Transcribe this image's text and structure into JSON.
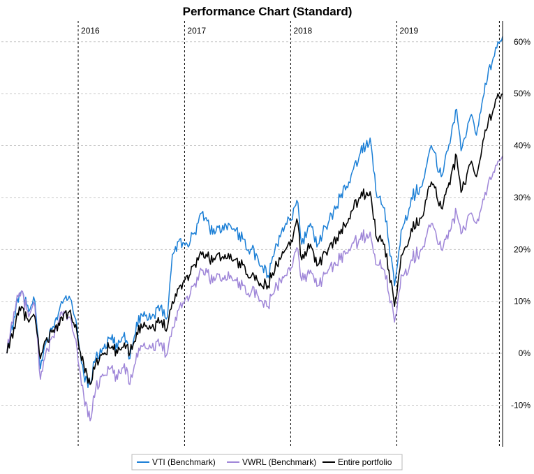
{
  "chart_data": {
    "type": "line",
    "title": "Performance Chart (Standard)",
    "xlabel": "",
    "ylabel": "",
    "x_range": [
      "2015-05-01",
      "2019-12-31"
    ],
    "year_markers": [
      {
        "label": "2016",
        "date": "2016-01-01"
      },
      {
        "label": "2017",
        "date": "2017-01-01"
      },
      {
        "label": "2018",
        "date": "2018-01-01"
      },
      {
        "label": "2019",
        "date": "2019-01-01"
      }
    ],
    "end_marker_dates": [
      "2019-12-20",
      "2019-12-31"
    ],
    "ylim": [
      -18,
      64
    ],
    "y_ticks": [
      {
        "value": -10,
        "label": "-10%"
      },
      {
        "value": 0,
        "label": "0%"
      },
      {
        "value": 10,
        "label": "10%"
      },
      {
        "value": 20,
        "label": "20%"
      },
      {
        "value": 30,
        "label": "30%"
      },
      {
        "value": 40,
        "label": "40%"
      },
      {
        "value": 50,
        "label": "50%"
      },
      {
        "value": 60,
        "label": "60%"
      }
    ],
    "grid": true,
    "legend_position": "bottom",
    "series": [
      {
        "name": "VTI (Benchmark)",
        "color": "#1b7fd6",
        "points": [
          [
            "2015-05-01",
            0
          ],
          [
            "2015-05-25",
            7
          ],
          [
            "2015-06-20",
            12
          ],
          [
            "2015-07-15",
            8
          ],
          [
            "2015-08-05",
            10
          ],
          [
            "2015-08-24",
            -3
          ],
          [
            "2015-09-15",
            3
          ],
          [
            "2015-10-10",
            5
          ],
          [
            "2015-11-05",
            10
          ],
          [
            "2015-12-01",
            11
          ],
          [
            "2015-12-20",
            7
          ],
          [
            "2016-01-20",
            -4
          ],
          [
            "2016-02-11",
            -6
          ],
          [
            "2016-03-01",
            -1
          ],
          [
            "2016-03-25",
            1
          ],
          [
            "2016-04-20",
            3
          ],
          [
            "2016-05-15",
            1
          ],
          [
            "2016-06-08",
            4
          ],
          [
            "2016-06-27",
            -1
          ],
          [
            "2016-07-20",
            6
          ],
          [
            "2016-08-15",
            8
          ],
          [
            "2016-09-10",
            7
          ],
          [
            "2016-10-10",
            9
          ],
          [
            "2016-11-03",
            7
          ],
          [
            "2016-11-20",
            19
          ],
          [
            "2016-12-15",
            22
          ],
          [
            "2017-01-10",
            21
          ],
          [
            "2017-02-01",
            23
          ],
          [
            "2017-03-01",
            27
          ],
          [
            "2017-04-15",
            23
          ],
          [
            "2017-05-20",
            25
          ],
          [
            "2017-06-20",
            24
          ],
          [
            "2017-07-20",
            22
          ],
          [
            "2017-08-20",
            20
          ],
          [
            "2017-09-15",
            17
          ],
          [
            "2017-10-15",
            15
          ],
          [
            "2017-11-15",
            21
          ],
          [
            "2017-12-15",
            25
          ],
          [
            "2018-01-26",
            29
          ],
          [
            "2018-02-08",
            21
          ],
          [
            "2018-03-10",
            25
          ],
          [
            "2018-04-05",
            21
          ],
          [
            "2018-05-10",
            25
          ],
          [
            "2018-06-20",
            30
          ],
          [
            "2018-07-20",
            33
          ],
          [
            "2018-08-25",
            38
          ],
          [
            "2018-09-20",
            41
          ],
          [
            "2018-10-05",
            40
          ],
          [
            "2018-10-25",
            30
          ],
          [
            "2018-11-20",
            28
          ],
          [
            "2018-12-24",
            13
          ],
          [
            "2019-01-20",
            24
          ],
          [
            "2019-02-20",
            30
          ],
          [
            "2019-03-25",
            32
          ],
          [
            "2019-04-30",
            40
          ],
          [
            "2019-06-03",
            34
          ],
          [
            "2019-07-26",
            47
          ],
          [
            "2019-08-10",
            39
          ],
          [
            "2019-09-15",
            46
          ],
          [
            "2019-10-02",
            42
          ],
          [
            "2019-11-01",
            52
          ],
          [
            "2019-11-25",
            56
          ],
          [
            "2019-12-15",
            60
          ],
          [
            "2019-12-31",
            61
          ]
        ]
      },
      {
        "name": "VWRL (Benchmark)",
        "color": "#9f86d8",
        "points": [
          [
            "2015-05-01",
            0
          ],
          [
            "2015-05-25",
            8
          ],
          [
            "2015-06-20",
            12
          ],
          [
            "2015-07-15",
            7
          ],
          [
            "2015-08-05",
            9
          ],
          [
            "2015-08-24",
            -5
          ],
          [
            "2015-09-15",
            1
          ],
          [
            "2015-10-10",
            3
          ],
          [
            "2015-11-05",
            8
          ],
          [
            "2015-12-01",
            7
          ],
          [
            "2015-12-20",
            3
          ],
          [
            "2016-01-20",
            -8
          ],
          [
            "2016-02-11",
            -13
          ],
          [
            "2016-03-01",
            -7
          ],
          [
            "2016-03-25",
            -4
          ],
          [
            "2016-04-20",
            -3
          ],
          [
            "2016-05-15",
            -5
          ],
          [
            "2016-06-08",
            -2
          ],
          [
            "2016-06-27",
            -6
          ],
          [
            "2016-07-20",
            0
          ],
          [
            "2016-08-15",
            2
          ],
          [
            "2016-09-10",
            1
          ],
          [
            "2016-10-10",
            2
          ],
          [
            "2016-11-03",
            0
          ],
          [
            "2016-11-20",
            5
          ],
          [
            "2016-12-15",
            9
          ],
          [
            "2017-01-10",
            11
          ],
          [
            "2017-02-01",
            13
          ],
          [
            "2017-03-01",
            16
          ],
          [
            "2017-04-15",
            14
          ],
          [
            "2017-05-20",
            15
          ],
          [
            "2017-06-20",
            14
          ],
          [
            "2017-07-20",
            13
          ],
          [
            "2017-08-20",
            12
          ],
          [
            "2017-09-15",
            10
          ],
          [
            "2017-10-15",
            9
          ],
          [
            "2017-11-15",
            13
          ],
          [
            "2017-12-15",
            15
          ],
          [
            "2018-01-26",
            20
          ],
          [
            "2018-02-08",
            14
          ],
          [
            "2018-03-10",
            16
          ],
          [
            "2018-04-05",
            13
          ],
          [
            "2018-05-10",
            16
          ],
          [
            "2018-06-20",
            18
          ],
          [
            "2018-07-20",
            20
          ],
          [
            "2018-08-25",
            22
          ],
          [
            "2018-09-20",
            23
          ],
          [
            "2018-10-05",
            22
          ],
          [
            "2018-10-25",
            17
          ],
          [
            "2018-11-20",
            16
          ],
          [
            "2018-12-24",
            6
          ],
          [
            "2019-01-20",
            15
          ],
          [
            "2019-02-20",
            18
          ],
          [
            "2019-03-25",
            20
          ],
          [
            "2019-04-30",
            25
          ],
          [
            "2019-06-03",
            20
          ],
          [
            "2019-07-26",
            27
          ],
          [
            "2019-08-10",
            23
          ],
          [
            "2019-09-15",
            27
          ],
          [
            "2019-10-02",
            25
          ],
          [
            "2019-11-01",
            31
          ],
          [
            "2019-11-25",
            34
          ],
          [
            "2019-12-15",
            37
          ],
          [
            "2019-12-31",
            38
          ]
        ]
      },
      {
        "name": "Entire portfolio",
        "color": "#000000",
        "points": [
          [
            "2015-05-01",
            0
          ],
          [
            "2015-05-25",
            5
          ],
          [
            "2015-06-20",
            9
          ],
          [
            "2015-07-15",
            6
          ],
          [
            "2015-08-05",
            7
          ],
          [
            "2015-08-24",
            -1
          ],
          [
            "2015-09-15",
            3
          ],
          [
            "2015-10-10",
            4
          ],
          [
            "2015-11-05",
            7
          ],
          [
            "2015-12-01",
            8
          ],
          [
            "2015-12-20",
            5
          ],
          [
            "2016-01-20",
            -2
          ],
          [
            "2016-02-11",
            -6
          ],
          [
            "2016-03-01",
            -2
          ],
          [
            "2016-03-25",
            0
          ],
          [
            "2016-04-20",
            1
          ],
          [
            "2016-05-15",
            0
          ],
          [
            "2016-06-08",
            2
          ],
          [
            "2016-06-27",
            0
          ],
          [
            "2016-07-20",
            4
          ],
          [
            "2016-08-15",
            6
          ],
          [
            "2016-09-10",
            5
          ],
          [
            "2016-10-10",
            6
          ],
          [
            "2016-11-03",
            5
          ],
          [
            "2016-11-20",
            10
          ],
          [
            "2016-12-15",
            13
          ],
          [
            "2017-01-10",
            15
          ],
          [
            "2017-02-01",
            17
          ],
          [
            "2017-03-01",
            19
          ],
          [
            "2017-04-15",
            18
          ],
          [
            "2017-05-20",
            19
          ],
          [
            "2017-06-20",
            18
          ],
          [
            "2017-07-20",
            17
          ],
          [
            "2017-08-20",
            15
          ],
          [
            "2017-09-15",
            13
          ],
          [
            "2017-10-15",
            13
          ],
          [
            "2017-11-15",
            17
          ],
          [
            "2017-12-15",
            20
          ],
          [
            "2018-01-26",
            25
          ],
          [
            "2018-02-08",
            18
          ],
          [
            "2018-03-10",
            21
          ],
          [
            "2018-04-05",
            17
          ],
          [
            "2018-05-10",
            20
          ],
          [
            "2018-06-20",
            23
          ],
          [
            "2018-07-20",
            26
          ],
          [
            "2018-08-25",
            30
          ],
          [
            "2018-09-20",
            31
          ],
          [
            "2018-10-05",
            30
          ],
          [
            "2018-10-25",
            22
          ],
          [
            "2018-11-20",
            21
          ],
          [
            "2018-12-24",
            9
          ],
          [
            "2019-01-20",
            19
          ],
          [
            "2019-02-20",
            24
          ],
          [
            "2019-03-25",
            26
          ],
          [
            "2019-04-30",
            33
          ],
          [
            "2019-06-03",
            28
          ],
          [
            "2019-07-26",
            38
          ],
          [
            "2019-08-10",
            31
          ],
          [
            "2019-09-15",
            37
          ],
          [
            "2019-10-02",
            34
          ],
          [
            "2019-11-01",
            43
          ],
          [
            "2019-11-25",
            46
          ],
          [
            "2019-12-15",
            50
          ],
          [
            "2019-12-31",
            50
          ]
        ]
      }
    ]
  }
}
